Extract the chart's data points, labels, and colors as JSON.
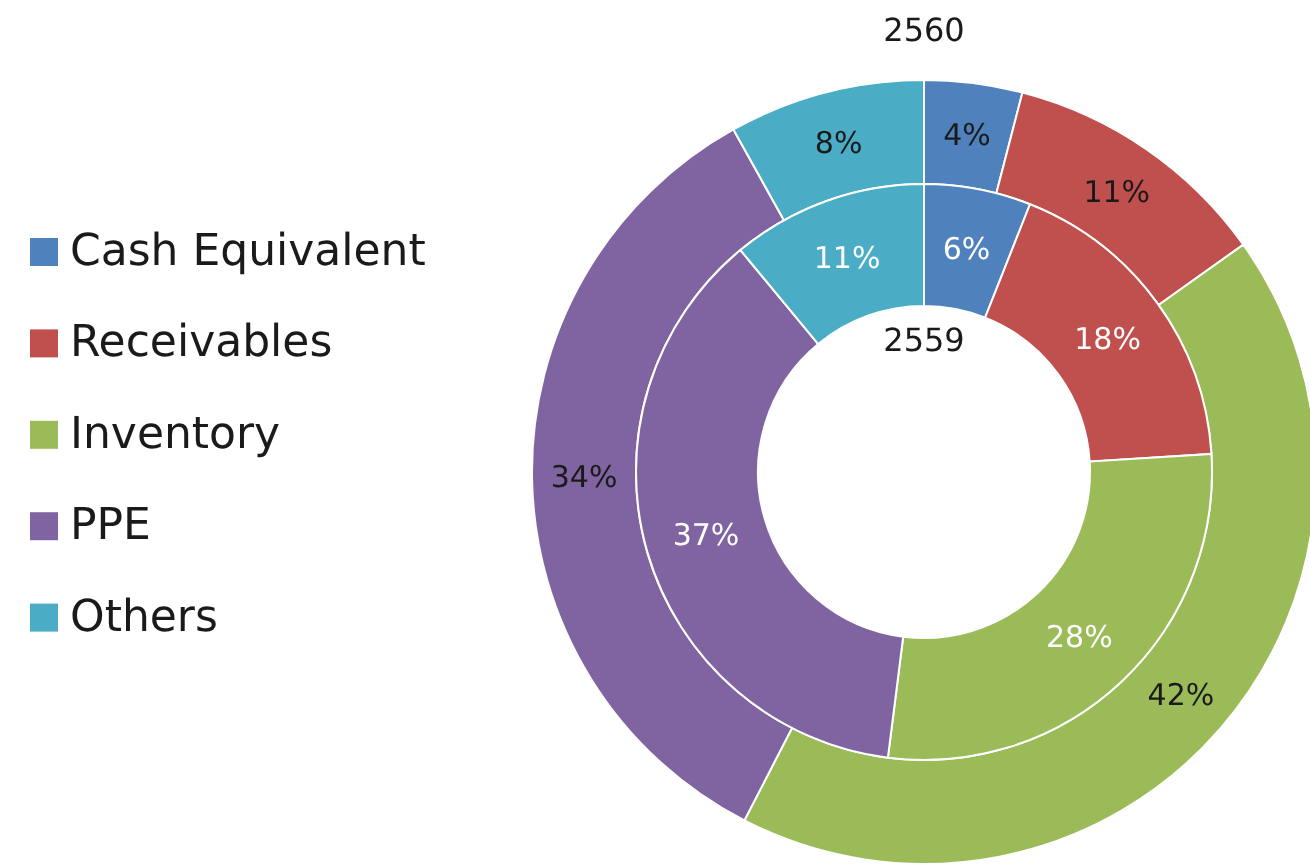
{
  "chart_data": {
    "type": "donut",
    "categories": [
      "Cash Equivalent",
      "Receivables",
      "Inventory",
      "PPE",
      "Others"
    ],
    "colors": [
      "#4f81bd",
      "#c0504d",
      "#9bbb59",
      "#8064a2",
      "#4bacc6"
    ],
    "series": [
      {
        "name": "2560",
        "values": [
          4,
          11,
          42,
          34,
          8
        ],
        "value_labels": [
          "4%",
          "11%",
          "42%",
          "34%",
          "8%"
        ]
      },
      {
        "name": "2559",
        "values": [
          6,
          18,
          28,
          37,
          11
        ],
        "value_labels": [
          "6%",
          "18%",
          "28%",
          "37%",
          "11%"
        ]
      }
    ],
    "legend": "left"
  }
}
